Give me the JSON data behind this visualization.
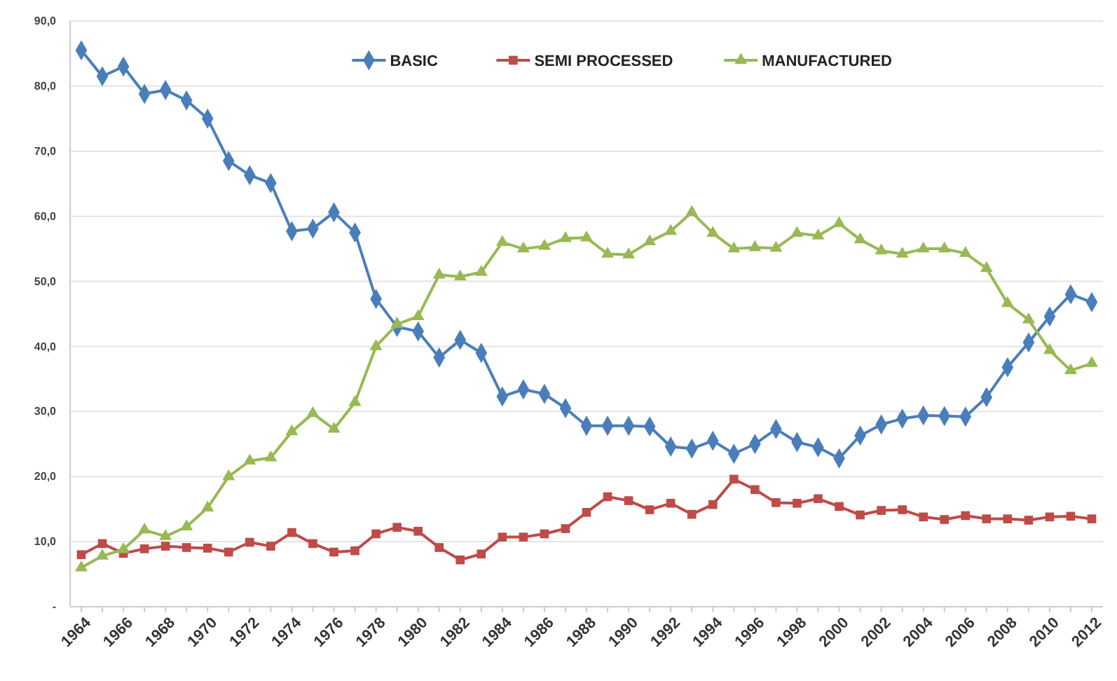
{
  "chart_data": {
    "type": "line",
    "categories": [
      "1964",
      null,
      "1966",
      null,
      "1968",
      null,
      "1970",
      null,
      "1972",
      null,
      "1974",
      null,
      "1976",
      null,
      "1978",
      null,
      "1980",
      null,
      "1982",
      null,
      "1984",
      null,
      "1986",
      null,
      "1988",
      null,
      "1990",
      null,
      "1992",
      null,
      "1994",
      null,
      "1996",
      null,
      "1998",
      null,
      "2000",
      null,
      "2002",
      null,
      "2004",
      null,
      "2006",
      null,
      "2008",
      null,
      "2010",
      null,
      "2012"
    ],
    "series": [
      {
        "name": "BASIC",
        "color": "#4a7ebb",
        "marker": "diamond",
        "values": [
          85.5,
          81.5,
          83,
          78.8,
          79.4,
          77.8,
          75,
          68.5,
          66.3,
          65.1,
          57.7,
          58.1,
          60.6,
          57.5,
          47.3,
          43,
          42.3,
          38.3,
          41,
          39,
          32.3,
          33.4,
          32.7,
          30.5,
          27.8,
          27.8,
          27.8,
          27.7,
          24.6,
          24.3,
          25.5,
          23.5,
          25,
          27.3,
          25.3,
          24.5,
          22.8,
          26.3,
          28,
          28.9,
          29.4,
          29.3,
          29.2,
          32.2,
          36.8,
          40.6,
          44.6,
          48,
          46.8
        ]
      },
      {
        "name": "SEMI PROCESSED",
        "color": "#be4b48",
        "marker": "square",
        "values": [
          8,
          9.7,
          8.2,
          8.9,
          9.3,
          9.1,
          9,
          8.4,
          9.9,
          9.3,
          11.4,
          9.7,
          8.4,
          8.6,
          11.2,
          12.2,
          11.6,
          9.1,
          7.2,
          8.1,
          10.7,
          10.7,
          11.2,
          12,
          14.5,
          16.9,
          16.3,
          14.9,
          15.9,
          14.2,
          15.7,
          19.6,
          18,
          16,
          15.9,
          16.6,
          15.4,
          14.1,
          14.8,
          14.9,
          13.8,
          13.4,
          14,
          13.5,
          13.5,
          13.3,
          13.8,
          13.9,
          13.5
        ]
      },
      {
        "name": "MANUFACTURED",
        "color": "#98b954",
        "marker": "triangle",
        "values": [
          6,
          7.8,
          8.8,
          11.8,
          10.8,
          12.3,
          15.2,
          20,
          22.4,
          22.9,
          26.9,
          29.7,
          27.3,
          31.4,
          40,
          43.4,
          44.6,
          51,
          50.7,
          51.4,
          56,
          55,
          55.4,
          56.6,
          56.7,
          54.2,
          54.1,
          56.1,
          57.7,
          60.6,
          57.4,
          55,
          55.2,
          55.1,
          57.4,
          57,
          58.9,
          56.4,
          54.7,
          54.2,
          55,
          55,
          54.3,
          52,
          46.6,
          44.1,
          39.4,
          36.3,
          37.4
        ]
      }
    ],
    "ylim": [
      0,
      90
    ],
    "yticks": [
      {
        "value": 0,
        "label": "-"
      },
      {
        "value": 10,
        "label": "10,0"
      },
      {
        "value": 20,
        "label": "20,0"
      },
      {
        "value": 30,
        "label": "30,0"
      },
      {
        "value": 40,
        "label": "40,0"
      },
      {
        "value": 50,
        "label": "50,0"
      },
      {
        "value": 60,
        "label": "60,0"
      },
      {
        "value": 70,
        "label": "70,0"
      },
      {
        "value": 80,
        "label": "80,0"
      },
      {
        "value": 90,
        "label": "90,0"
      }
    ],
    "grid": "y",
    "legend": "top",
    "line_style": "solid"
  }
}
